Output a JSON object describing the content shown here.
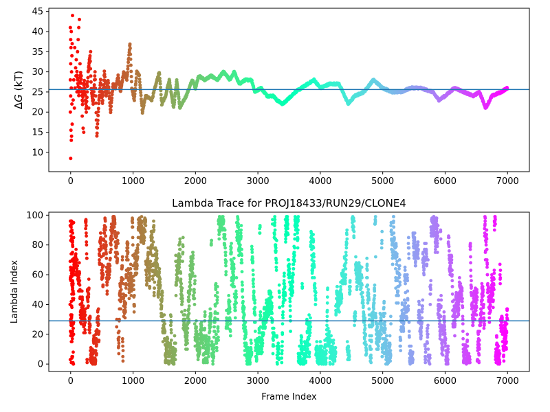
{
  "chart_data": [
    {
      "type": "scatter",
      "title": "",
      "xlabel": "",
      "ylabel_prefix": "Δ",
      "ylabel_symbol": "G",
      "ylabel_suffix": " (kT)",
      "xlim": [
        -350,
        7350
      ],
      "ylim": [
        5.2,
        45.8
      ],
      "xticks": [
        0,
        1000,
        2000,
        3000,
        4000,
        5000,
        6000,
        7000
      ],
      "yticks": [
        10,
        15,
        20,
        25,
        30,
        35,
        40,
        45
      ],
      "hline": 25.6,
      "hline_color": "#1f77b4",
      "colormap": "rainbow (red at frame 0 → violet at frame 7000)",
      "x_max": 7000,
      "trace_keypoints": [
        [
          100,
          30
        ],
        [
          130,
          24
        ],
        [
          160,
          30
        ],
        [
          190,
          22
        ],
        [
          220,
          28
        ],
        [
          250,
          20
        ],
        [
          280,
          30
        ],
        [
          310,
          34
        ],
        [
          330,
          26
        ],
        [
          360,
          22
        ],
        [
          390,
          30
        ],
        [
          420,
          14
        ],
        [
          450,
          22
        ],
        [
          480,
          28
        ],
        [
          510,
          22
        ],
        [
          540,
          30
        ],
        [
          570,
          24
        ],
        [
          600,
          28
        ],
        [
          640,
          20
        ],
        [
          680,
          27
        ],
        [
          720,
          26
        ],
        [
          760,
          29
        ],
        [
          800,
          25
        ],
        [
          850,
          30
        ],
        [
          900,
          28
        ],
        [
          950,
          37
        ],
        [
          980,
          26
        ],
        [
          1020,
          23
        ],
        [
          1060,
          30
        ],
        [
          1100,
          29
        ],
        [
          1150,
          20
        ],
        [
          1200,
          24
        ],
        [
          1300,
          23
        ],
        [
          1420,
          30
        ],
        [
          1460,
          22
        ],
        [
          1520,
          24
        ],
        [
          1580,
          28
        ],
        [
          1650,
          21
        ],
        [
          1700,
          28
        ],
        [
          1750,
          21
        ],
        [
          1850,
          24
        ],
        [
          1950,
          28
        ],
        [
          2000,
          26
        ],
        [
          2050,
          29
        ],
        [
          2150,
          28
        ],
        [
          2250,
          29
        ],
        [
          2350,
          28
        ],
        [
          2450,
          30
        ],
        [
          2550,
          28
        ],
        [
          2620,
          30
        ],
        [
          2700,
          27
        ],
        [
          2800,
          28
        ],
        [
          2900,
          28
        ],
        [
          2950,
          25
        ],
        [
          3050,
          26
        ],
        [
          3150,
          24
        ],
        [
          3250,
          24
        ],
        [
          3300,
          23
        ],
        [
          3400,
          22
        ],
        [
          3600,
          25
        ],
        [
          3800,
          27
        ],
        [
          3900,
          28
        ],
        [
          4000,
          26
        ],
        [
          4150,
          27
        ],
        [
          4300,
          27
        ],
        [
          4450,
          22
        ],
        [
          4550,
          24
        ],
        [
          4700,
          25
        ],
        [
          4850,
          28
        ],
        [
          5000,
          26
        ],
        [
          5150,
          25
        ],
        [
          5300,
          25
        ],
        [
          5450,
          26
        ],
        [
          5600,
          26
        ],
        [
          5800,
          25
        ],
        [
          5900,
          23
        ],
        [
          6000,
          24
        ],
        [
          6150,
          26
        ],
        [
          6300,
          25
        ],
        [
          6450,
          24
        ],
        [
          6550,
          25
        ],
        [
          6650,
          21
        ],
        [
          6750,
          24
        ],
        [
          6900,
          25
        ],
        [
          7000,
          26
        ]
      ],
      "early_scatter": [
        [
          0,
          8.5
        ],
        [
          10,
          13
        ],
        [
          15,
          14
        ],
        [
          5,
          15.5
        ],
        [
          25,
          17
        ],
        [
          -5,
          20
        ],
        [
          20,
          22
        ],
        [
          0,
          24
        ],
        [
          10,
          26
        ],
        [
          -5,
          28
        ],
        [
          15,
          30
        ],
        [
          0,
          32
        ],
        [
          20,
          34
        ],
        [
          5,
          36
        ],
        [
          25,
          37
        ],
        [
          0,
          38
        ],
        [
          10,
          40
        ],
        [
          -5,
          41
        ],
        [
          30,
          44
        ],
        [
          60,
          21
        ],
        [
          70,
          26
        ],
        [
          80,
          31
        ],
        [
          90,
          33
        ],
        [
          110,
          35
        ],
        [
          120,
          38
        ],
        [
          130,
          41
        ],
        [
          140,
          43
        ],
        [
          150,
          32
        ],
        [
          170,
          29
        ],
        [
          185,
          19
        ],
        [
          200,
          16
        ],
        [
          210,
          15
        ],
        [
          230,
          25
        ],
        [
          260,
          27
        ],
        [
          290,
          21
        ],
        [
          300,
          33
        ],
        [
          320,
          35
        ],
        [
          40,
          23
        ],
        [
          50,
          28
        ],
        [
          65,
          36
        ],
        [
          85,
          29
        ],
        [
          100,
          25
        ]
      ]
    },
    {
      "type": "scatter",
      "title": "Lambda Trace for PROJ18433/RUN29/CLONE4",
      "xlabel": "Frame Index",
      "ylabel": "Lambda Index",
      "xlim": [
        -350,
        7350
      ],
      "ylim": [
        -5,
        102
      ],
      "xticks": [
        0,
        1000,
        2000,
        3000,
        4000,
        5000,
        6000,
        7000
      ],
      "yticks": [
        0,
        20,
        40,
        60,
        80,
        100
      ],
      "hline": 29,
      "hline_color": "#1f77b4",
      "colormap": "rainbow (red at frame 0 → violet at frame 7000)",
      "x_max": 7000,
      "lambda_range": [
        0,
        99
      ]
    }
  ]
}
